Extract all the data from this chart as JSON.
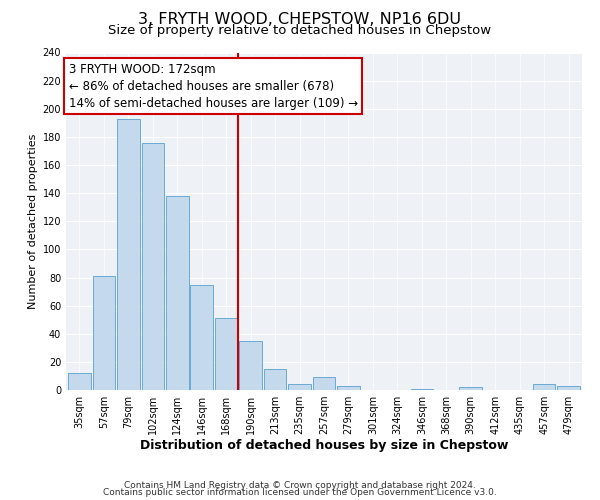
{
  "title": "3, FRYTH WOOD, CHEPSTOW, NP16 6DU",
  "subtitle": "Size of property relative to detached houses in Chepstow",
  "xlabel": "Distribution of detached houses by size in Chepstow",
  "ylabel": "Number of detached properties",
  "bar_labels": [
    "35sqm",
    "57sqm",
    "79sqm",
    "102sqm",
    "124sqm",
    "146sqm",
    "168sqm",
    "190sqm",
    "213sqm",
    "235sqm",
    "257sqm",
    "279sqm",
    "301sqm",
    "324sqm",
    "346sqm",
    "368sqm",
    "390sqm",
    "412sqm",
    "435sqm",
    "457sqm",
    "479sqm"
  ],
  "bar_values": [
    12,
    81,
    193,
    176,
    138,
    75,
    51,
    35,
    15,
    4,
    9,
    3,
    0,
    0,
    1,
    0,
    2,
    0,
    0,
    4,
    3
  ],
  "bar_color": "#c5d9ed",
  "bar_edge_color": "#6aaad4",
  "vline_x_index": 6,
  "vline_color": "#cc0000",
  "annotation_line1": "3 FRYTH WOOD: 172sqm",
  "annotation_line2": "← 86% of detached houses are smaller (678)",
  "annotation_line3": "14% of semi-detached houses are larger (109) →",
  "annotation_box_color": "#ffffff",
  "annotation_box_edge": "#cc0000",
  "ylim": [
    0,
    240
  ],
  "yticks": [
    0,
    20,
    40,
    60,
    80,
    100,
    120,
    140,
    160,
    180,
    200,
    220,
    240
  ],
  "footer1": "Contains HM Land Registry data © Crown copyright and database right 2024.",
  "footer2": "Contains public sector information licensed under the Open Government Licence v3.0.",
  "title_fontsize": 11.5,
  "subtitle_fontsize": 9.5,
  "xlabel_fontsize": 9,
  "ylabel_fontsize": 8,
  "tick_fontsize": 7,
  "footer_fontsize": 6.5,
  "annotation_fontsize": 8.5,
  "bg_color": "#eef2f7"
}
